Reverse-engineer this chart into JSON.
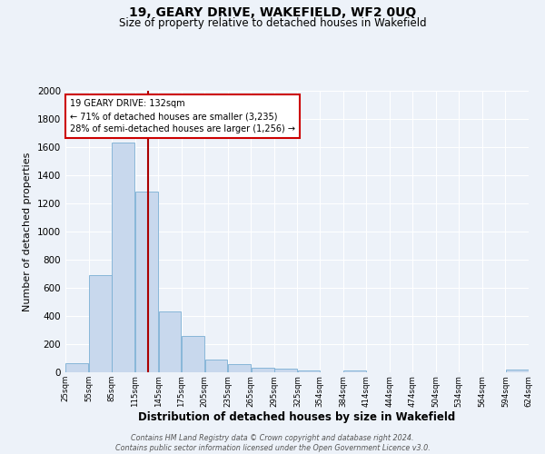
{
  "title": "19, GEARY DRIVE, WAKEFIELD, WF2 0UQ",
  "subtitle": "Size of property relative to detached houses in Wakefield",
  "xlabel": "Distribution of detached houses by size in Wakefield",
  "ylabel": "Number of detached properties",
  "bar_color": "#c8d8ed",
  "bar_edge_color": "#7aafd4",
  "background_color": "#edf2f9",
  "grid_color": "#ffffff",
  "property_line_x": 132,
  "property_line_color": "#aa0000",
  "annotation_line1": "19 GEARY DRIVE: 132sqm",
  "annotation_line2": "← 71% of detached houses are smaller (3,235)",
  "annotation_line3": "28% of semi-detached houses are larger (1,256) →",
  "annotation_box_color": "#ffffff",
  "annotation_box_edge": "#cc0000",
  "footer_text": "Contains HM Land Registry data © Crown copyright and database right 2024.\nContains public sector information licensed under the Open Government Licence v3.0.",
  "bin_edges": [
    25,
    55,
    85,
    115,
    145,
    175,
    205,
    235,
    265,
    295,
    325,
    354,
    384,
    414,
    444,
    474,
    504,
    534,
    564,
    594,
    624
  ],
  "bar_heights": [
    65,
    690,
    1635,
    1285,
    435,
    255,
    90,
    55,
    30,
    25,
    10,
    0,
    15,
    0,
    0,
    0,
    0,
    0,
    0,
    20
  ],
  "ylim": [
    0,
    2000
  ],
  "yticks": [
    0,
    200,
    400,
    600,
    800,
    1000,
    1200,
    1400,
    1600,
    1800,
    2000
  ]
}
